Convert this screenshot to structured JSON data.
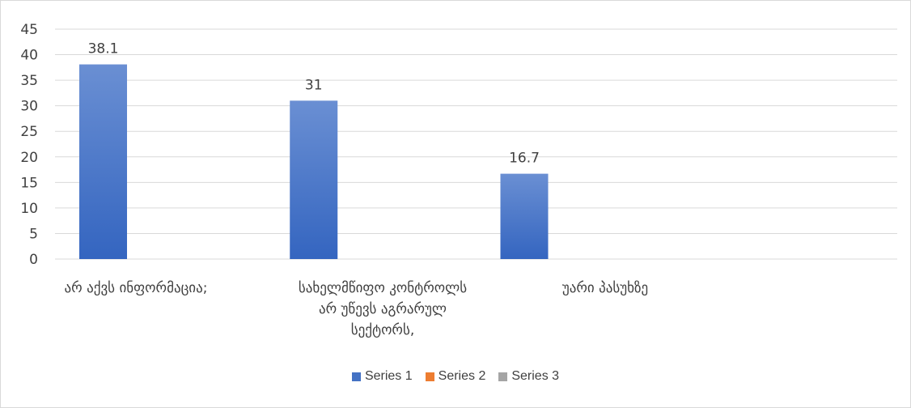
{
  "chart_data": {
    "type": "bar",
    "categories": [
      "არ აქვს ინფორმაცია;",
      "სახელმწიფო კონტროლს არ უწევს აგრარულ სექტორს,",
      "უარი პასუხზე",
      ""
    ],
    "series": [
      {
        "name": "Series 1",
        "values": [
          38.1,
          31,
          16.7,
          null
        ],
        "color": "#4472C4"
      },
      {
        "name": "Series 2",
        "values": [
          null,
          null,
          null,
          null
        ],
        "color": "#ED7D31"
      },
      {
        "name": "Series 3",
        "values": [
          null,
          null,
          null,
          null
        ],
        "color": "#A5A5A5"
      }
    ],
    "data_labels": [
      "38.1",
      "31",
      "16.7"
    ],
    "ylim": [
      0,
      45
    ],
    "yticks": [
      "0",
      "5",
      "10",
      "15",
      "20",
      "25",
      "30",
      "35",
      "40",
      "45"
    ],
    "grid": true,
    "legend_position": "bottom"
  }
}
